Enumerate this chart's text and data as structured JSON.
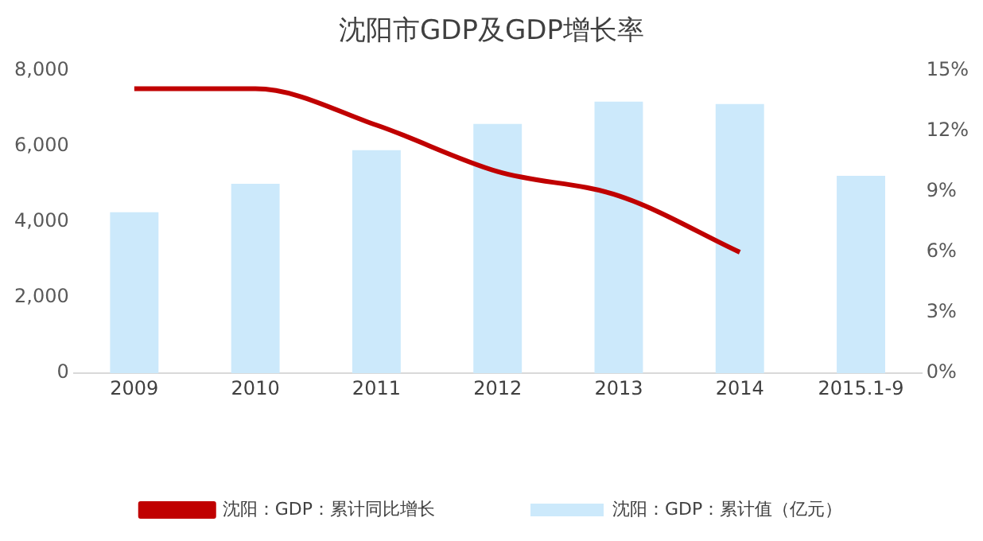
{
  "chart_data": {
    "type": "bar",
    "title": "沈阳市GDP及GDP增长率",
    "categories": [
      "2009",
      "2010",
      "2011",
      "2012",
      "2013",
      "2014",
      "2015.1-9"
    ],
    "series": [
      {
        "name": "沈阳：GDP：累计值（亿元）",
        "color": "#cce9fb",
        "values": [
          4260,
          5010,
          5900,
          6590,
          7180,
          7120,
          5220
        ]
      },
      {
        "name": "沈阳：GDP：累计同比增长",
        "type": "line",
        "axis": "y2",
        "color": "#c00000",
        "values": [
          14.1,
          14.1,
          12.3,
          10.0,
          8.8,
          6.0,
          null
        ]
      }
    ],
    "ylim": [
      0,
      8000
    ],
    "yticks": [
      0,
      {
        "value": 2000,
        "label": "2,000"
      },
      {
        "value": 4000,
        "label": "4,000"
      },
      {
        "value": 6000,
        "label": "6,000"
      },
      {
        "value": 8000,
        "label": "8,000"
      }
    ],
    "y2lim": [
      0,
      15
    ],
    "y2ticks": [
      {
        "value": 0,
        "label": "0%"
      },
      {
        "value": 3,
        "label": "3%"
      },
      {
        "value": 6,
        "label": "6%"
      },
      {
        "value": 9,
        "label": "9%"
      },
      {
        "value": 12,
        "label": "12%"
      },
      {
        "value": 15,
        "label": "15%"
      }
    ],
    "grid": false,
    "legend": "bottom",
    "marker": "none",
    "line_style": "solid"
  }
}
